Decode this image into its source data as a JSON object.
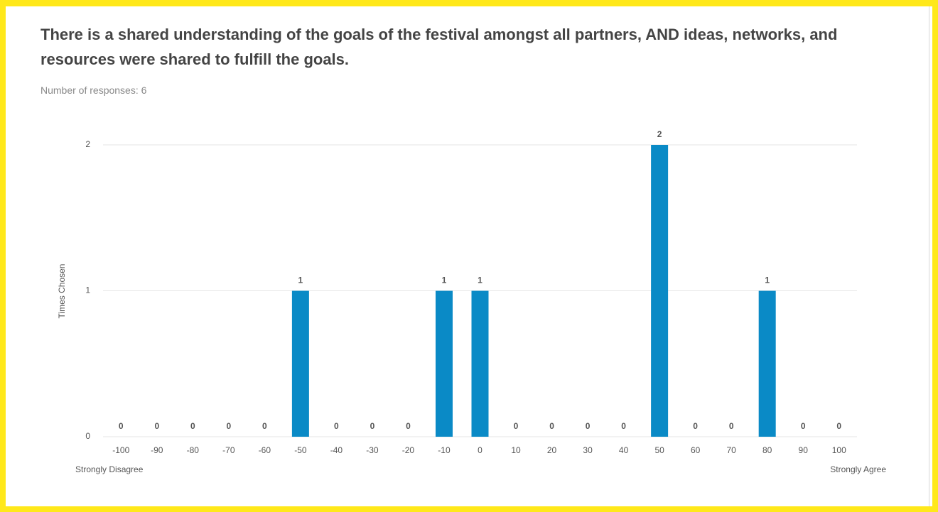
{
  "chart_data": {
    "type": "bar",
    "title": "There is a shared understanding of the goals of the festival amongst all partners, AND ideas, networks, and resources were shared to fulfill the goals.",
    "subtitle": "Number of responses: 6",
    "y_label": "Times Chosen",
    "x_label_left": "Strongly Disagree",
    "x_label_right": "Strongly Agree",
    "categories": [
      "-100",
      "-90",
      "-80",
      "-70",
      "-60",
      "-50",
      "-40",
      "-30",
      "-20",
      "-10",
      "0",
      "10",
      "20",
      "30",
      "40",
      "50",
      "60",
      "70",
      "80",
      "90",
      "100"
    ],
    "values": [
      0,
      0,
      0,
      0,
      0,
      1,
      0,
      0,
      0,
      1,
      1,
      0,
      0,
      0,
      0,
      2,
      0,
      0,
      1,
      0,
      0
    ],
    "color": "#0a8ac6",
    "ylim": [
      0,
      2
    ],
    "yticks": [
      0,
      1,
      2
    ],
    "grid": true
  }
}
